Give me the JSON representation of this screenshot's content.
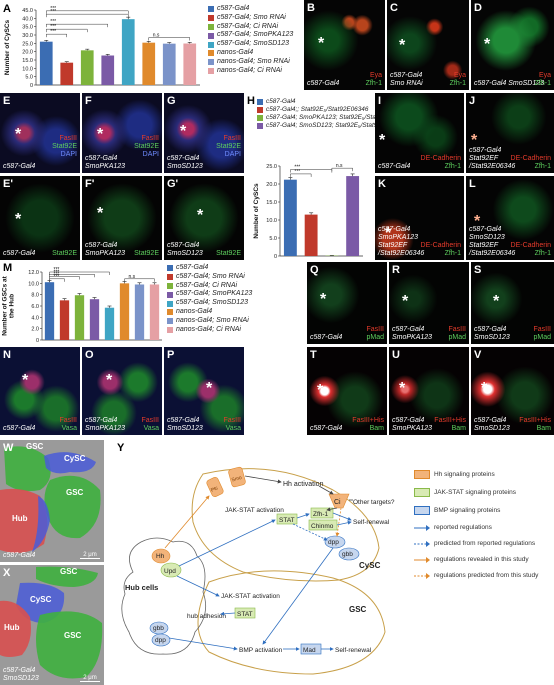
{
  "figure": {
    "chartA": {
      "letter": "A",
      "ylabel": "Number of CySCs",
      "yticks": [
        "0",
        "5.0",
        "10.0",
        "15.0",
        "20.0",
        "25.0",
        "30.0",
        "35.0",
        "40.0",
        "45.0"
      ],
      "sig": [
        "***",
        "***",
        "***",
        "***",
        "***",
        "n.s"
      ]
    },
    "chartH": {
      "letter": "H",
      "ylabel": "Number of CySCs",
      "yticks": [
        "0",
        "5.0",
        "10.0",
        "15.0",
        "20.0",
        "25.0"
      ],
      "sig": [
        "***",
        "***",
        "n.s"
      ],
      "legend": [
        "c587-Gal4",
        "c587-Gal4;; Stat92E₅/Stat92E06346",
        "c587-Gal4; SmoPKA123; Stat92E₅/Stat92E06346",
        "c587-Gal4; SmoSD123; Stat92E₅/Stat92E06346"
      ]
    },
    "chartM": {
      "letter": "M",
      "ylabel": "Number of GSCs at the Hub",
      "yticks": [
        "0",
        "2.0",
        "4.0",
        "6.0",
        "8.0",
        "10.0",
        "12.0"
      ],
      "sig": [
        "***",
        "***",
        "***",
        "***",
        "n.s"
      ]
    },
    "legendA": [
      "c587-Gal4",
      "c587-Gal4; Smo RNAi",
      "c587-Gal4; Ci RNAi",
      "c587-Gal4; SmoPKA123",
      "c587-Gal4; SmoSD123",
      "nanos-Gal4",
      "nanos-Gal4; Smo RNAi",
      "nanos-Gal4; Ci RNAi"
    ],
    "legendM": [
      "c587-Gal4",
      "c587-Gal4; Smo RNAi",
      "c587-Gal4; Ci RNAi",
      "c587-Gal4; SmoPKA123",
      "c587-Gal4; SmoSD123",
      "nanos-Gal4",
      "nanos-Gal4; Smo RNAi",
      "nanos-Gal4; Ci RNAi"
    ],
    "micrographs": {
      "B": {
        "genotype": "c587-Gal4",
        "ch1": "Eya",
        "ch2": "Zfh-1"
      },
      "C": {
        "genotype": "c587-Gal4 Smo RNAi",
        "ch1": "Eya",
        "ch2": "Zfh-1"
      },
      "D": {
        "genotype": "c587-Gal4 SmoSD123",
        "ch1": "Eya",
        "ch2": "Zfh-1"
      },
      "E": {
        "genotype": "c587-Gal4",
        "ch1": "FasIII",
        "ch2": "Stat92E",
        "ch3": "DAPI"
      },
      "F": {
        "genotype": "c587-Gal4 SmoPKA123",
        "ch1": "FasIII",
        "ch2": "Stat92E",
        "ch3": "DAPI"
      },
      "G": {
        "genotype": "c587-Gal4 SmoSD123",
        "ch1": "FasIII",
        "ch2": "Stat92E",
        "ch3": "DAPI"
      },
      "E2": {
        "letter": "E'",
        "genotype": "c587-Gal4",
        "ch2": "Stat92E"
      },
      "F2": {
        "letter": "F'",
        "genotype": "c587-Gal4 SmoPKA123",
        "ch2": "Stat92E"
      },
      "G2": {
        "letter": "G'",
        "genotype": "c587-Gal4 SmoSD123",
        "ch2": "Stat92E"
      },
      "I": {
        "genotype": "c587-Gal4",
        "ch1": "DE-Cadherin",
        "ch2": "Zfh-1"
      },
      "J": {
        "genotype": "c587-Gal4 Stat92EF /Stat92E06346",
        "ch1": "DE-Cadherin",
        "ch2": "Zfh-1"
      },
      "K": {
        "genotype": "c587-Gal4 SmoPKA123 Stat92EF /Stat92E06346",
        "ch1": "DE-Cadherin",
        "ch2": "Zfh-1"
      },
      "L": {
        "genotype": "c587-Gal4 SmoSD123 Stat92EF /Stat92E06346",
        "ch1": "DE-Cadherin",
        "ch2": "Zfh-1"
      },
      "N": {
        "genotype": "c587-Gal4",
        "ch1": "FasIII",
        "ch2": "Vasa"
      },
      "O": {
        "genotype": "c587-Gal4 SmoPKA123",
        "ch1": "FasIII",
        "ch2": "Vasa"
      },
      "P": {
        "genotype": "c587-Gal4 SmoSD123",
        "ch1": "FasIII",
        "ch2": "Vasa"
      },
      "Q": {
        "genotype": "c587-Gal4",
        "ch1": "FasIII",
        "ch2": "pMad"
      },
      "R": {
        "genotype": "c587-Gal4 SmoPKA123",
        "ch1": "FasIII",
        "ch2": "pMad"
      },
      "S": {
        "genotype": "c587-Gal4 SmoSD123",
        "ch1": "FasIII",
        "ch2": "pMad"
      },
      "T": {
        "genotype": "c587-Gal4",
        "ch1": "FasIII+His",
        "ch2": "Bam"
      },
      "U": {
        "genotype": "c587-Gal4 SmoPKA123",
        "ch1": "FasIII+His",
        "ch2": "Bam"
      },
      "V": {
        "genotype": "c587-Gal4 SmoSD123",
        "ch1": "FasIII+His",
        "ch2": "Bam"
      }
    },
    "em": {
      "W": {
        "genotype": "c587-Gal4",
        "scale": "2 μm",
        "labels": [
          "GSC",
          "CySC",
          "GSC",
          "Hub"
        ]
      },
      "X": {
        "genotype": "c587-Gal4 SmoSD123",
        "scale": "2 μm",
        "labels": [
          "GSC",
          "CySC",
          "Hub",
          "GSC"
        ]
      }
    },
    "diagram": {
      "letter": "Y",
      "nodes": {
        "hh_activation": "Hh activation",
        "ci": "Ci",
        "other_targets": "Other targets?",
        "jakstat_activation": "JAK-STAT activation",
        "stat": "STAT",
        "zfh1": "Zfh-1",
        "chinmo": "Chinmo",
        "self_renewal": "Self-renewal",
        "dpp": "dpp",
        "gbb": "gbb",
        "cysc": "CySC",
        "hh": "Hh",
        "upd": "Upd",
        "hub_cells": "Hub cells",
        "jakstat_activation2": "JAK-STAT activation",
        "stat2": "STAT",
        "hub_adhesion": "hub adhesion",
        "gsc": "GSC",
        "gbb2": "gbb",
        "dpp2": "dpp",
        "bmp_activation": "BMP activation",
        "mad": "Mad",
        "self_renewal2": "Self-renewal",
        "ptc": "Ptc",
        "smo": "Smo"
      },
      "legend": [
        "Hh signaling proteins",
        "JAK-STAT signaling proteins",
        "BMP signaling proteins",
        "reported regulations",
        "predicted from reported regulations",
        "regulations revealed in this study",
        "regulations predicted from this study"
      ]
    }
  },
  "colors": {
    "bar": [
      "#3b6db3",
      "#c0392b",
      "#7db33b",
      "#7b5aa6",
      "#3fa5c4",
      "#e08a2c",
      "#7b93c9",
      "#e5a0a4"
    ],
    "barH": [
      "#3b6db3",
      "#c0392b",
      "#7db33b",
      "#7b5aa6"
    ]
  }
}
